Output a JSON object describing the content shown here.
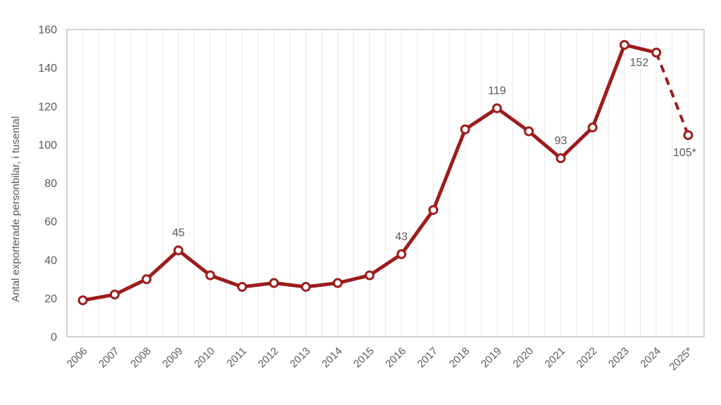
{
  "chart_data": {
    "type": "line",
    "title": "",
    "xlabel": "",
    "ylabel": "Antal exporterade personbilar, i tusental",
    "ylim": [
      0,
      160
    ],
    "yticks": [
      0,
      20,
      40,
      60,
      80,
      100,
      120,
      140,
      160
    ],
    "grid": "vertical-only, half-category spacing",
    "legend": "none",
    "categories": [
      "2006",
      "2007",
      "2008",
      "2009",
      "2010",
      "2011",
      "2012",
      "2013",
      "2014",
      "2015",
      "2016",
      "2017",
      "2018",
      "2019",
      "2020",
      "2021",
      "2022",
      "2023",
      "2024",
      "2025*"
    ],
    "series": [
      {
        "values": [
          19,
          22,
          30,
          45,
          32,
          26,
          28,
          26,
          28,
          32,
          43,
          66,
          108,
          119,
          107,
          93,
          109,
          152,
          148,
          105
        ],
        "color": "#9E1B1B",
        "marker": "circle-open",
        "dashed_segment_start": "2024"
      }
    ],
    "annotations": [
      {
        "category": "2009",
        "text": "45",
        "placement": "above"
      },
      {
        "category": "2016",
        "text": "43",
        "placement": "above"
      },
      {
        "category": "2019",
        "text": "119",
        "placement": "above"
      },
      {
        "category": "2021",
        "text": "93",
        "placement": "above"
      },
      {
        "category": "2023",
        "text": "152",
        "placement": "below-right"
      },
      {
        "category": "2025*",
        "text": "105*",
        "placement": "below"
      }
    ]
  },
  "colors": {
    "line": "#9E1B1B",
    "marker_fill": "#FFFFFF",
    "tick_text": "#595959",
    "label_text": "#595959",
    "gridline": "#EAEAEA",
    "plot_border": "#C4C4C4",
    "background": "#FFFFFF"
  }
}
